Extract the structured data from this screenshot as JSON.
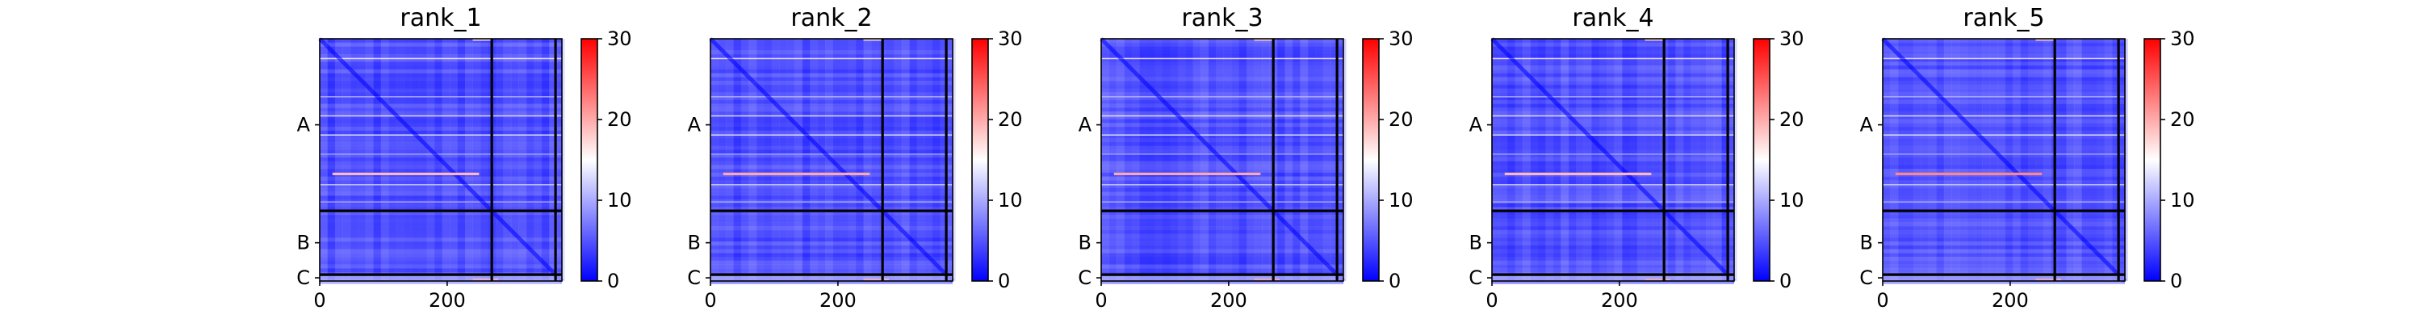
{
  "colors": {
    "low": "#0000ff",
    "mid": "#ffffff",
    "high": "#ff0000",
    "divider": "#000000"
  },
  "chart_data": [
    {
      "type": "heatmap",
      "title": "rank_1",
      "x_ticks": [
        "0",
        "200"
      ],
      "y_ticks": [
        "A",
        "B",
        "C"
      ],
      "colorbar_ticks": [
        "0",
        "10",
        "20",
        "30"
      ],
      "colorbar_range": [
        0,
        30
      ],
      "chain_lengths": {
        "A": 270,
        "B": 100,
        "C": 10
      },
      "residue_count": 380,
      "hot_rows": [
        {
          "row": 210,
          "value": 19
        }
      ],
      "hot_cols": [
        {
          "col": 240,
          "value": 17
        }
      ]
    },
    {
      "type": "heatmap",
      "title": "rank_2",
      "x_ticks": [
        "0",
        "200"
      ],
      "y_ticks": [
        "A",
        "B",
        "C"
      ],
      "colorbar_ticks": [
        "0",
        "10",
        "20",
        "30"
      ],
      "colorbar_range": [
        0,
        30
      ],
      "chain_lengths": {
        "A": 270,
        "B": 100,
        "C": 10
      },
      "residue_count": 380,
      "hot_rows": [
        {
          "row": 210,
          "value": 20
        }
      ],
      "hot_cols": [
        {
          "col": 240,
          "value": 17
        }
      ]
    },
    {
      "type": "heatmap",
      "title": "rank_3",
      "x_ticks": [
        "0",
        "200"
      ],
      "y_ticks": [
        "A",
        "B",
        "C"
      ],
      "colorbar_ticks": [
        "0",
        "10",
        "20",
        "30"
      ],
      "colorbar_range": [
        0,
        30
      ],
      "chain_lengths": {
        "A": 270,
        "B": 100,
        "C": 10
      },
      "residue_count": 380,
      "hot_rows": [
        {
          "row": 210,
          "value": 20
        }
      ],
      "hot_cols": [
        {
          "col": 240,
          "value": 18
        }
      ]
    },
    {
      "type": "heatmap",
      "title": "rank_4",
      "x_ticks": [
        "0",
        "200"
      ],
      "y_ticks": [
        "A",
        "B",
        "C"
      ],
      "colorbar_ticks": [
        "0",
        "10",
        "20",
        "30"
      ],
      "colorbar_range": [
        0,
        30
      ],
      "chain_lengths": {
        "A": 270,
        "B": 100,
        "C": 10
      },
      "residue_count": 380,
      "hot_rows": [
        {
          "row": 210,
          "value": 19
        }
      ],
      "hot_cols": [
        {
          "col": 240,
          "value": 18
        }
      ]
    },
    {
      "type": "heatmap",
      "title": "rank_5",
      "x_ticks": [
        "0",
        "200"
      ],
      "y_ticks": [
        "A",
        "B",
        "C"
      ],
      "colorbar_ticks": [
        "0",
        "10",
        "20",
        "30"
      ],
      "colorbar_range": [
        0,
        30
      ],
      "chain_lengths": {
        "A": 270,
        "B": 100,
        "C": 10
      },
      "residue_count": 380,
      "hot_rows": [
        {
          "row": 210,
          "value": 22
        }
      ],
      "hot_cols": [
        {
          "col": 240,
          "value": 18
        }
      ]
    }
  ]
}
